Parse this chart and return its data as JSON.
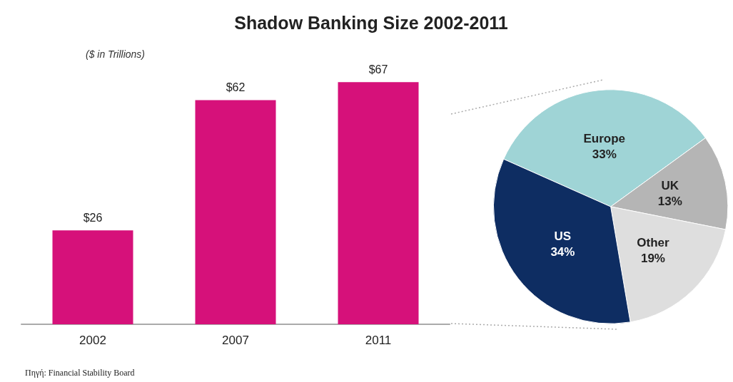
{
  "chart_data": [
    {
      "type": "bar",
      "title": "Shadow Banking Size 2002-2011",
      "subtitle": "($ in Trillions)",
      "categories": [
        "2002",
        "2007",
        "2011"
      ],
      "values": [
        26,
        62,
        67
      ],
      "value_labels": [
        "$26",
        "$62",
        "$67"
      ],
      "color": "#d6117a",
      "legend": false,
      "annotations": [
        "Πηγή: Financial Stability Board"
      ]
    },
    {
      "type": "pie",
      "categories": [
        "Europe",
        "UK",
        "Other",
        "US"
      ],
      "values": [
        33,
        13,
        19,
        34
      ],
      "value_labels": [
        "33%",
        "13%",
        "19%",
        "34%"
      ],
      "colors": [
        "#9fd4d6",
        "#b5b5b5",
        "#dedede",
        "#0e2d62"
      ],
      "legend": false
    }
  ]
}
